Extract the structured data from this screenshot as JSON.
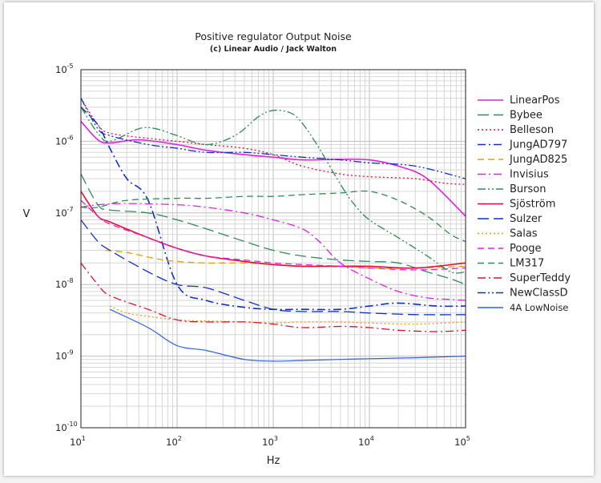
{
  "chart_data": {
    "type": "line",
    "title": "Positive regulator Output Noise",
    "subtitle": "(c) Linear Audio / Jack Walton",
    "xlabel": "Hz",
    "ylabel": "V",
    "xscale": "log",
    "yscale": "log",
    "xlim": [
      10,
      100000
    ],
    "ylim": [
      1e-10,
      1e-05
    ],
    "grid": true,
    "legend_position": "right",
    "x_ticks": [
      {
        "base": "10",
        "exp": "1"
      },
      {
        "base": "10",
        "exp": "2"
      },
      {
        "base": "10",
        "exp": "3"
      },
      {
        "base": "10",
        "exp": "4"
      },
      {
        "base": "10",
        "exp": "5"
      }
    ],
    "y_ticks": [
      {
        "base": "10",
        "exp": "-10"
      },
      {
        "base": "10",
        "exp": "-9"
      },
      {
        "base": "10",
        "exp": "-8"
      },
      {
        "base": "10",
        "exp": "-7"
      },
      {
        "base": "10",
        "exp": "-6"
      },
      {
        "base": "10",
        "exp": "-5"
      }
    ],
    "series": [
      {
        "name": "LinearPos",
        "color": "#e020e0",
        "dash": "solid",
        "width": 1.6,
        "points": [
          [
            10,
            1.9e-06
          ],
          [
            15,
            1.05e-06
          ],
          [
            20,
            9.5e-07
          ],
          [
            40,
            1.05e-06
          ],
          [
            100,
            9e-07
          ],
          [
            200,
            7.5e-07
          ],
          [
            500,
            6.5e-07
          ],
          [
            1000,
            6e-07
          ],
          [
            2000,
            5.5e-07
          ],
          [
            5000,
            5.6e-07
          ],
          [
            10000,
            5.5e-07
          ],
          [
            20000,
            4.5e-07
          ],
          [
            40000,
            3e-07
          ],
          [
            100000,
            9e-08
          ]
        ]
      },
      {
        "name": "Bybee",
        "color": "#2e8b57",
        "dash": "long",
        "width": 1.3,
        "points": [
          [
            10,
            3.5e-07
          ],
          [
            15,
            1.3e-07
          ],
          [
            20,
            1.1e-07
          ],
          [
            50,
            1e-07
          ],
          [
            100,
            8e-08
          ],
          [
            200,
            6e-08
          ],
          [
            500,
            4e-08
          ],
          [
            1000,
            3e-08
          ],
          [
            2000,
            2.5e-08
          ],
          [
            5000,
            2.2e-08
          ],
          [
            10000,
            2.1e-08
          ],
          [
            20000,
            2e-08
          ],
          [
            40000,
            1.5e-08
          ],
          [
            70000,
            1.2e-08
          ],
          [
            100000,
            1e-08
          ]
        ]
      },
      {
        "name": "Belleson",
        "color": "#e0102e",
        "dash": "dot",
        "width": 1.3,
        "points": [
          [
            10,
            4e-06
          ],
          [
            15,
            1.7e-06
          ],
          [
            20,
            1.3e-06
          ],
          [
            50,
            1.1e-06
          ],
          [
            100,
            1e-06
          ],
          [
            200,
            9e-07
          ],
          [
            500,
            8e-07
          ],
          [
            1000,
            6.5e-07
          ],
          [
            2000,
            4.5e-07
          ],
          [
            5000,
            3.5e-07
          ],
          [
            10000,
            3.2e-07
          ],
          [
            30000,
            3e-07
          ],
          [
            60000,
            2.6e-07
          ],
          [
            100000,
            2.5e-07
          ]
        ]
      },
      {
        "name": "JungAD797",
        "color": "#1030c0",
        "dash": "dashdot",
        "width": 1.6,
        "points": [
          [
            10,
            3e-06
          ],
          [
            15,
            1.7e-06
          ],
          [
            20,
            8e-07
          ],
          [
            30,
            3e-07
          ],
          [
            50,
            1.5e-07
          ],
          [
            100,
            1e-08
          ],
          [
            200,
            6e-09
          ],
          [
            500,
            4.8e-09
          ],
          [
            1000,
            4.5e-09
          ],
          [
            2000,
            4.5e-09
          ],
          [
            5000,
            4.5e-09
          ],
          [
            10000,
            5e-09
          ],
          [
            20000,
            5.5e-09
          ],
          [
            50000,
            5e-09
          ],
          [
            100000,
            5e-09
          ]
        ]
      },
      {
        "name": "JungAD825",
        "color": "#e89a10",
        "dash": "dash",
        "width": 1.3,
        "points": [
          [
            18,
            3e-08
          ],
          [
            30,
            2.8e-08
          ],
          [
            60,
            2.3e-08
          ],
          [
            100,
            2.1e-08
          ],
          [
            200,
            2e-08
          ],
          [
            500,
            2e-08
          ],
          [
            1000,
            1.9e-08
          ],
          [
            2000,
            1.8e-08
          ],
          [
            5000,
            1.8e-08
          ],
          [
            10000,
            1.7e-08
          ],
          [
            30000,
            1.7e-08
          ],
          [
            100000,
            1.8e-08
          ]
        ]
      },
      {
        "name": "Invisius",
        "color": "#e020e0",
        "dash": "dashdot",
        "width": 1.3,
        "points": [
          [
            10,
            1.2e-07
          ],
          [
            15,
            1.3e-07
          ],
          [
            30,
            1.35e-07
          ],
          [
            100,
            1.3e-07
          ],
          [
            200,
            1.2e-07
          ],
          [
            500,
            1e-07
          ],
          [
            1000,
            8e-08
          ],
          [
            2000,
            6e-08
          ],
          [
            3000,
            4e-08
          ],
          [
            5000,
            2e-08
          ],
          [
            10000,
            1.2e-08
          ],
          [
            20000,
            8e-09
          ],
          [
            40000,
            6.5e-09
          ],
          [
            70000,
            6.2e-09
          ],
          [
            100000,
            6e-09
          ]
        ]
      },
      {
        "name": "Burson",
        "color": "#2e8b57",
        "dash": "dashdotdot",
        "width": 1.3,
        "points": [
          [
            10,
            3e-06
          ],
          [
            15,
            1.3e-06
          ],
          [
            20,
            1e-06
          ],
          [
            40,
            1.5e-06
          ],
          [
            60,
            1.5e-06
          ],
          [
            100,
            1.2e-06
          ],
          [
            200,
            9e-07
          ],
          [
            400,
            1.2e-06
          ],
          [
            700,
            2.2e-06
          ],
          [
            1000,
            2.7e-06
          ],
          [
            1500,
            2.5e-06
          ],
          [
            2000,
            1.8e-06
          ],
          [
            3000,
            8e-07
          ],
          [
            5000,
            2.5e-07
          ],
          [
            7000,
            1.3e-07
          ],
          [
            10000,
            8e-08
          ],
          [
            20000,
            4.5e-08
          ],
          [
            40000,
            2.5e-08
          ],
          [
            70000,
            1.5e-08
          ],
          [
            100000,
            1.5e-08
          ]
        ]
      },
      {
        "name": "Sjöström",
        "color": "#e0102e",
        "dash": "solid",
        "width": 1.6,
        "points": [
          [
            10,
            2e-07
          ],
          [
            15,
            9e-08
          ],
          [
            20,
            7.5e-08
          ],
          [
            50,
            4.5e-08
          ],
          [
            100,
            3.2e-08
          ],
          [
            200,
            2.5e-08
          ],
          [
            500,
            2.1e-08
          ],
          [
            1000,
            1.9e-08
          ],
          [
            2000,
            1.8e-08
          ],
          [
            5000,
            1.8e-08
          ],
          [
            10000,
            1.8e-08
          ],
          [
            30000,
            1.7e-08
          ],
          [
            100000,
            2e-08
          ]
        ]
      },
      {
        "name": "Sulzer",
        "color": "#1030c0",
        "dash": "long",
        "width": 1.3,
        "points": [
          [
            10,
            8e-08
          ],
          [
            15,
            4e-08
          ],
          [
            20,
            3e-08
          ],
          [
            50,
            1.5e-08
          ],
          [
            100,
            1e-08
          ],
          [
            200,
            9e-09
          ],
          [
            500,
            6e-09
          ],
          [
            1000,
            4.5e-09
          ],
          [
            2000,
            4.2e-09
          ],
          [
            5000,
            4.2e-09
          ],
          [
            10000,
            4e-09
          ],
          [
            30000,
            3.8e-09
          ],
          [
            100000,
            3.8e-09
          ]
        ]
      },
      {
        "name": "Salas",
        "color": "#e89a10",
        "dash": "dot",
        "width": 1.3,
        "points": [
          [
            20,
            5e-09
          ],
          [
            30,
            4e-09
          ],
          [
            50,
            3.6e-09
          ],
          [
            100,
            3.2e-09
          ],
          [
            200,
            3.1e-09
          ],
          [
            500,
            3e-09
          ],
          [
            1000,
            2.9e-09
          ],
          [
            2000,
            3e-09
          ],
          [
            5000,
            3e-09
          ],
          [
            10000,
            2.9e-09
          ],
          [
            30000,
            2.8e-09
          ],
          [
            100000,
            3e-09
          ]
        ]
      },
      {
        "name": "Pooge",
        "color": "#e020e0",
        "dash": "dash",
        "width": 1.3,
        "points": [
          [
            10,
            1.5e-07
          ],
          [
            15,
            9e-08
          ],
          [
            20,
            7e-08
          ],
          [
            50,
            4.5e-08
          ],
          [
            100,
            3.2e-08
          ],
          [
            200,
            2.5e-08
          ],
          [
            500,
            2.2e-08
          ],
          [
            1000,
            2e-08
          ],
          [
            2000,
            1.9e-08
          ],
          [
            5000,
            1.8e-08
          ],
          [
            10000,
            1.7e-08
          ],
          [
            30000,
            1.6e-08
          ],
          [
            100000,
            1.7e-08
          ]
        ]
      },
      {
        "name": "LM317",
        "color": "#2e8b57",
        "dash": "dash",
        "width": 1.3,
        "points": [
          [
            10,
            1.2e-07
          ],
          [
            15,
            1.2e-07
          ],
          [
            30,
            1.5e-07
          ],
          [
            100,
            1.6e-07
          ],
          [
            200,
            1.6e-07
          ],
          [
            500,
            1.7e-07
          ],
          [
            1000,
            1.7e-07
          ],
          [
            2000,
            1.8e-07
          ],
          [
            5000,
            1.9e-07
          ],
          [
            10000,
            2e-07
          ],
          [
            20000,
            1.5e-07
          ],
          [
            40000,
            9e-08
          ],
          [
            70000,
            5e-08
          ],
          [
            100000,
            4e-08
          ]
        ]
      },
      {
        "name": "SuperTeddy",
        "color": "#e0102e",
        "dash": "dashdot",
        "width": 1.3,
        "points": [
          [
            10,
            2e-08
          ],
          [
            15,
            1e-08
          ],
          [
            20,
            7e-09
          ],
          [
            50,
            4.5e-09
          ],
          [
            100,
            3.2e-09
          ],
          [
            200,
            3e-09
          ],
          [
            500,
            3e-09
          ],
          [
            1000,
            2.8e-09
          ],
          [
            2000,
            2.5e-09
          ],
          [
            5000,
            2.6e-09
          ],
          [
            10000,
            2.5e-09
          ],
          [
            20000,
            2.3e-09
          ],
          [
            50000,
            2.2e-09
          ],
          [
            100000,
            2.3e-09
          ]
        ]
      },
      {
        "name": "NewClassD",
        "color": "#1030c0",
        "dash": "dashdotdot",
        "width": 1.3,
        "points": [
          [
            10,
            4e-06
          ],
          [
            15,
            1.5e-06
          ],
          [
            20,
            1.2e-06
          ],
          [
            50,
            9e-07
          ],
          [
            100,
            8e-07
          ],
          [
            200,
            7e-07
          ],
          [
            500,
            7e-07
          ],
          [
            1000,
            6.5e-07
          ],
          [
            2000,
            6e-07
          ],
          [
            5000,
            5.5e-07
          ],
          [
            10000,
            5e-07
          ],
          [
            30000,
            4.5e-07
          ],
          [
            100000,
            3e-07
          ]
        ]
      },
      {
        "name": "4A LowNoise",
        "color": "#3060e0",
        "dash": "solid",
        "width": 1.2,
        "points": [
          [
            20,
            4.5e-09
          ],
          [
            50,
            2.5e-09
          ],
          [
            100,
            1.4e-09
          ],
          [
            200,
            1.2e-09
          ],
          [
            500,
            9e-10
          ],
          [
            1000,
            8.5e-10
          ],
          [
            2000,
            8.7e-10
          ],
          [
            5000,
            9e-10
          ],
          [
            10000,
            9.2e-10
          ],
          [
            30000,
            9.5e-10
          ],
          [
            100000,
            1e-09
          ]
        ]
      }
    ]
  }
}
